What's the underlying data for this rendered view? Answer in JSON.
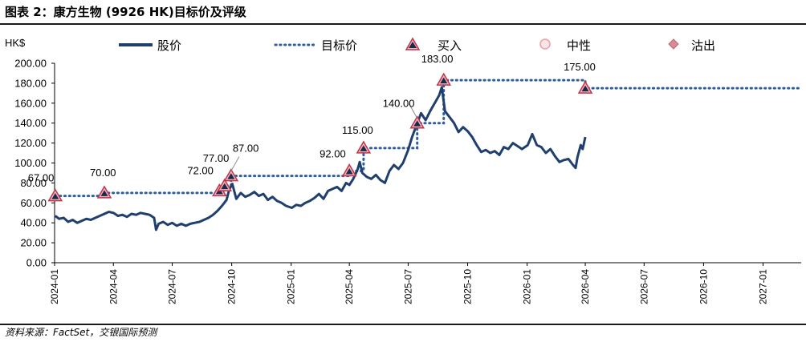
{
  "header": {
    "title": "图表 2：康方生物 (9926 HK)目标价及评级"
  },
  "footer": {
    "source": "资料来源：FactSet，交银国际预测"
  },
  "chart_data": {
    "type": "line",
    "ylabel": "HK$",
    "ylim": [
      0,
      200
    ],
    "yticks": [
      "0.00",
      "20.00",
      "40.00",
      "60.00",
      "80.00",
      "100.00",
      "120.00",
      "140.00",
      "160.00",
      "180.00",
      "200.00"
    ],
    "xlim": [
      "2024-01-01",
      "2027-03-01"
    ],
    "xticks": [
      {
        "label": "2024-01",
        "date": "2024-01-01"
      },
      {
        "label": "2024-04",
        "date": "2024-04-01"
      },
      {
        "label": "2024-07",
        "date": "2024-07-01"
      },
      {
        "label": "2024-10",
        "date": "2024-10-01"
      },
      {
        "label": "2025-01",
        "date": "2025-01-01"
      },
      {
        "label": "2025-04",
        "date": "2025-04-01"
      },
      {
        "label": "2025-07",
        "date": "2025-07-01"
      },
      {
        "label": "2025-10",
        "date": "2025-10-01"
      },
      {
        "label": "2026-01",
        "date": "2026-01-01"
      },
      {
        "label": "2026-04",
        "date": "2026-04-01"
      },
      {
        "label": "2026-07",
        "date": "2026-07-01"
      },
      {
        "label": "2026-10",
        "date": "2026-10-01"
      },
      {
        "label": "2027-01",
        "date": "2027-01-01"
      }
    ],
    "legend": {
      "placement": "top",
      "items": [
        {
          "key": "price",
          "label": "股价"
        },
        {
          "key": "target",
          "label": "目标价"
        },
        {
          "key": "buy",
          "label": "买入"
        },
        {
          "key": "neutral",
          "label": "中性"
        },
        {
          "key": "sell",
          "label": "沽出"
        }
      ]
    },
    "colors": {
      "price": "#1f3f6e",
      "target": "#2f5ea0",
      "marker_fill": "#f2b6bd",
      "marker_edge": "#c0334a",
      "marker_inner": "#1a2a4a",
      "neutral": "#e8a0a8",
      "sell": "#d98a96"
    },
    "series": [
      {
        "name": "股价",
        "points": [
          [
            "2024-01-02",
            47
          ],
          [
            "2024-01-08",
            44
          ],
          [
            "2024-01-15",
            45
          ],
          [
            "2024-01-22",
            41
          ],
          [
            "2024-01-29",
            43
          ],
          [
            "2024-02-05",
            40
          ],
          [
            "2024-02-12",
            42
          ],
          [
            "2024-02-19",
            44
          ],
          [
            "2024-02-26",
            43
          ],
          [
            "2024-03-04",
            45
          ],
          [
            "2024-03-11",
            47
          ],
          [
            "2024-03-18",
            49
          ],
          [
            "2024-03-25",
            51
          ],
          [
            "2024-04-01",
            50
          ],
          [
            "2024-04-08",
            47
          ],
          [
            "2024-04-15",
            48
          ],
          [
            "2024-04-22",
            46
          ],
          [
            "2024-04-29",
            49
          ],
          [
            "2024-05-06",
            48
          ],
          [
            "2024-05-13",
            50
          ],
          [
            "2024-05-20",
            49
          ],
          [
            "2024-05-27",
            48
          ],
          [
            "2024-06-03",
            45
          ],
          [
            "2024-06-06",
            33
          ],
          [
            "2024-06-10",
            39
          ],
          [
            "2024-06-17",
            41
          ],
          [
            "2024-06-24",
            38
          ],
          [
            "2024-07-01",
            40
          ],
          [
            "2024-07-08",
            37
          ],
          [
            "2024-07-15",
            39
          ],
          [
            "2024-07-22",
            37
          ],
          [
            "2024-07-29",
            39
          ],
          [
            "2024-08-05",
            40
          ],
          [
            "2024-08-12",
            41
          ],
          [
            "2024-08-19",
            43
          ],
          [
            "2024-08-26",
            45
          ],
          [
            "2024-09-02",
            48
          ],
          [
            "2024-09-09",
            52
          ],
          [
            "2024-09-16",
            57
          ],
          [
            "2024-09-23",
            63
          ],
          [
            "2024-09-27",
            73
          ],
          [
            "2024-10-02",
            79
          ],
          [
            "2024-10-08",
            64
          ],
          [
            "2024-10-15",
            70
          ],
          [
            "2024-10-22",
            66
          ],
          [
            "2024-10-29",
            68
          ],
          [
            "2024-11-05",
            71
          ],
          [
            "2024-11-12",
            67
          ],
          [
            "2024-11-19",
            69
          ],
          [
            "2024-11-26",
            63
          ],
          [
            "2024-12-03",
            66
          ],
          [
            "2024-12-10",
            62
          ],
          [
            "2024-12-17",
            60
          ],
          [
            "2024-12-24",
            57
          ],
          [
            "2025-01-02",
            55
          ],
          [
            "2025-01-09",
            58
          ],
          [
            "2025-01-16",
            57
          ],
          [
            "2025-01-23",
            60
          ],
          [
            "2025-01-30",
            62
          ],
          [
            "2025-02-06",
            65
          ],
          [
            "2025-02-13",
            69
          ],
          [
            "2025-02-20",
            64
          ],
          [
            "2025-02-27",
            72
          ],
          [
            "2025-03-06",
            74
          ],
          [
            "2025-03-13",
            76
          ],
          [
            "2025-03-20",
            72
          ],
          [
            "2025-03-27",
            80
          ],
          [
            "2025-04-01",
            78
          ],
          [
            "2025-04-07",
            84
          ],
          [
            "2025-04-10",
            88
          ],
          [
            "2025-04-14",
            94
          ],
          [
            "2025-04-17",
            101
          ],
          [
            "2025-04-21",
            90
          ],
          [
            "2025-04-28",
            86
          ],
          [
            "2025-05-05",
            84
          ],
          [
            "2025-05-12",
            88
          ],
          [
            "2025-05-19",
            83
          ],
          [
            "2025-05-26",
            80
          ],
          [
            "2025-06-02",
            92
          ],
          [
            "2025-06-09",
            98
          ],
          [
            "2025-06-16",
            94
          ],
          [
            "2025-06-23",
            100
          ],
          [
            "2025-07-01",
            113
          ],
          [
            "2025-07-07",
            126
          ],
          [
            "2025-07-14",
            138
          ],
          [
            "2025-07-21",
            150
          ],
          [
            "2025-07-28",
            143
          ],
          [
            "2025-08-04",
            152
          ],
          [
            "2025-08-11",
            160
          ],
          [
            "2025-08-18",
            168
          ],
          [
            "2025-08-22",
            176
          ],
          [
            "2025-08-27",
            152
          ],
          [
            "2025-09-03",
            146
          ],
          [
            "2025-09-10",
            140
          ],
          [
            "2025-09-17",
            131
          ],
          [
            "2025-09-24",
            136
          ],
          [
            "2025-10-01",
            132
          ],
          [
            "2025-10-08",
            126
          ],
          [
            "2025-10-15",
            118
          ],
          [
            "2025-10-22",
            111
          ],
          [
            "2025-10-29",
            113
          ],
          [
            "2025-11-05",
            110
          ],
          [
            "2025-11-12",
            112
          ],
          [
            "2025-11-19",
            108
          ],
          [
            "2025-11-26",
            116
          ],
          [
            "2025-12-03",
            114
          ],
          [
            "2025-12-10",
            120
          ],
          [
            "2025-12-17",
            117
          ],
          [
            "2025-12-24",
            114
          ],
          [
            "2026-01-02",
            118
          ],
          [
            "2026-01-09",
            129
          ],
          [
            "2026-01-16",
            118
          ],
          [
            "2026-01-23",
            116
          ],
          [
            "2026-01-30",
            110
          ],
          [
            "2026-02-06",
            114
          ],
          [
            "2026-02-13",
            107
          ],
          [
            "2026-02-20",
            101
          ],
          [
            "2026-02-27",
            103
          ],
          [
            "2026-03-06",
            104
          ],
          [
            "2026-03-13",
            98
          ],
          [
            "2026-03-17",
            95
          ],
          [
            "2026-03-20",
            106
          ],
          [
            "2026-03-25",
            118
          ],
          [
            "2026-03-28",
            114
          ],
          [
            "2026-04-01",
            126
          ]
        ]
      },
      {
        "name": "目标价",
        "steps": [
          [
            "2024-01-02",
            67
          ],
          [
            "2024-03-18",
            70
          ],
          [
            "2024-09-12",
            72
          ],
          [
            "2024-09-20",
            77
          ],
          [
            "2024-09-30",
            87
          ],
          [
            "2025-04-01",
            92
          ],
          [
            "2025-04-23",
            115
          ],
          [
            "2025-07-15",
            140
          ],
          [
            "2025-08-25",
            183
          ],
          [
            "2026-04-01",
            175
          ],
          [
            "2027-03-01",
            175
          ]
        ]
      }
    ],
    "ratings": [
      {
        "date": "2024-01-02",
        "target": 67,
        "rating": "买入",
        "label": "67.00"
      },
      {
        "date": "2024-03-18",
        "target": 70,
        "rating": "买入",
        "label": "70.00"
      },
      {
        "date": "2024-09-12",
        "target": 72,
        "rating": "买入",
        "label": "72.00"
      },
      {
        "date": "2024-09-20",
        "target": 77,
        "rating": "买入",
        "label": "77.00"
      },
      {
        "date": "2024-09-30",
        "target": 87,
        "rating": "买入",
        "label": "87.00"
      },
      {
        "date": "2025-04-01",
        "target": 92,
        "rating": "买入",
        "label": "92.00"
      },
      {
        "date": "2025-04-23",
        "target": 115,
        "rating": "买入",
        "label": "115.00"
      },
      {
        "date": "2025-07-15",
        "target": 140,
        "rating": "买入",
        "label": "140.00"
      },
      {
        "date": "2025-08-25",
        "target": 183,
        "rating": "买入",
        "label": "183.00"
      },
      {
        "date": "2026-04-01",
        "target": 175,
        "rating": "买入",
        "label": "175.00"
      }
    ]
  }
}
